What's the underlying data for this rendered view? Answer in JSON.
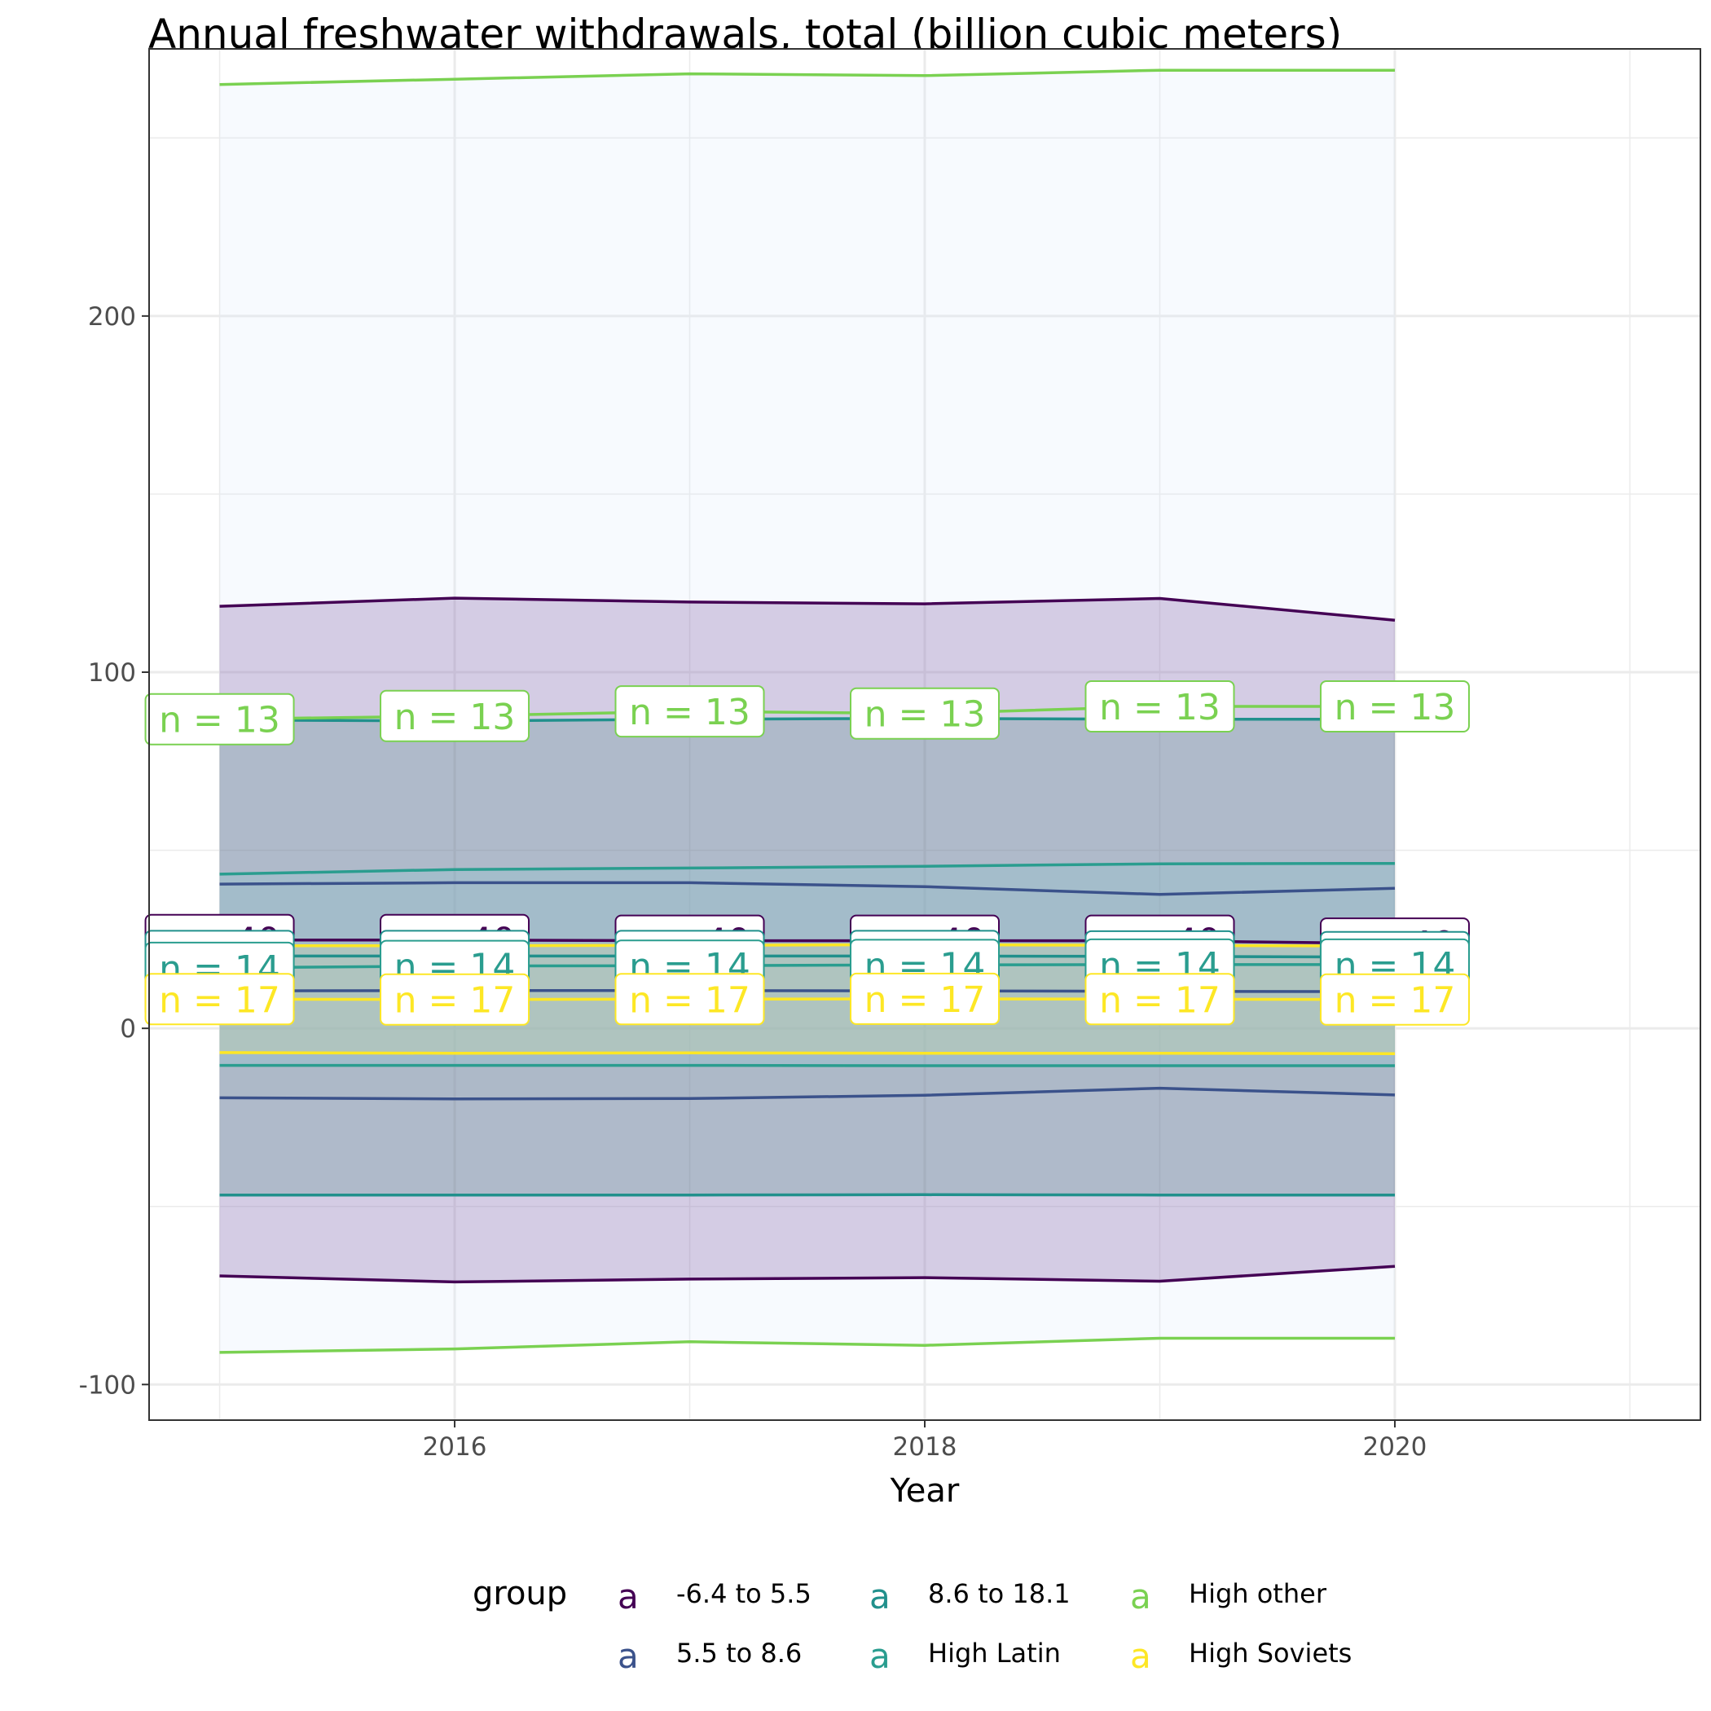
{
  "chart_data": {
    "type": "area",
    "title": "Annual freshwater withdrawals, total (billion cubic meters)",
    "xlabel": "Year",
    "ylabel": "",
    "xlim": [
      2014.7,
      2021.3
    ],
    "ylim": [
      -110,
      275
    ],
    "x_ticks": [
      2016,
      2018,
      2020
    ],
    "y_ticks": [
      -100,
      0,
      100,
      200
    ],
    "grid": true,
    "legend_title": "group",
    "legend_position": "bottom",
    "legend_key_glyph": "a",
    "x": [
      2015,
      2016,
      2017,
      2018,
      2019,
      2020
    ],
    "series": [
      {
        "name": "-6.4 to 5.5",
        "color": "#440154",
        "mean": [
          24.8,
          24.8,
          24.6,
          24.6,
          24.6,
          23.8
        ],
        "upper": [
          118.5,
          120.8,
          119.7,
          119.2,
          120.7,
          114.6
        ],
        "lower": [
          -69.5,
          -71.2,
          -70.4,
          -70.0,
          -71.0,
          -66.8
        ],
        "n_label": "n = 40",
        "fill": "#5b2a8a"
      },
      {
        "name": "5.5 to 8.6",
        "color": "#3b528b",
        "mean": [
          10.5,
          10.6,
          10.6,
          10.5,
          10.4,
          10.3
        ],
        "upper": [
          40.5,
          40.9,
          40.9,
          39.8,
          37.6,
          39.3
        ],
        "lower": [
          -19.5,
          -19.8,
          -19.7,
          -18.8,
          -16.8,
          -18.7
        ],
        "n_label": "n = 14",
        "fill": "#a8b4c6"
      },
      {
        "name": "8.6 to 18.1",
        "color": "#21908c",
        "mean": [
          20.3,
          20.3,
          20.3,
          20.3,
          20.2,
          20.0
        ],
        "upper": [
          86.6,
          86.3,
          86.8,
          87.0,
          86.8,
          86.8
        ],
        "lower": [
          -46.8,
          -46.8,
          -46.8,
          -46.7,
          -46.8,
          -46.8
        ],
        "n_label": "n = 14",
        "fill": "#2e7d6d"
      },
      {
        "name": "High Latin",
        "color": "#2a9d8f",
        "mean": [
          17.0,
          17.5,
          17.6,
          17.8,
          17.9,
          17.9
        ],
        "upper": [
          43.3,
          44.6,
          45.0,
          45.5,
          46.2,
          46.3
        ],
        "lower": [
          -10.4,
          -10.4,
          -10.4,
          -10.5,
          -10.5,
          -10.5
        ],
        "n_label": "n = 14",
        "fill": "#7ecad0"
      },
      {
        "name": "High other",
        "color": "#7ad151",
        "mean": [
          86.8,
          87.7,
          89.0,
          88.4,
          90.4,
          90.4
        ],
        "upper": [
          265.0,
          266.5,
          268.0,
          267.5,
          269.0,
          269.0
        ],
        "lower": [
          -91.0,
          -90.0,
          -88.0,
          -89.0,
          -87.0,
          -87.0
        ],
        "n_label": "n = 13",
        "fill": "#dbe8fb"
      },
      {
        "name": "High Soviets",
        "color": "#fde725",
        "mean": [
          8.2,
          8.1,
          8.2,
          8.3,
          8.2,
          8.1
        ],
        "upper": [
          23.2,
          23.2,
          23.3,
          23.5,
          23.3,
          23.1
        ],
        "lower": [
          -6.8,
          -7.0,
          -6.9,
          -7.0,
          -7.0,
          -7.1
        ],
        "n_label": "n = 17",
        "fill": "#d9e49a"
      }
    ]
  }
}
